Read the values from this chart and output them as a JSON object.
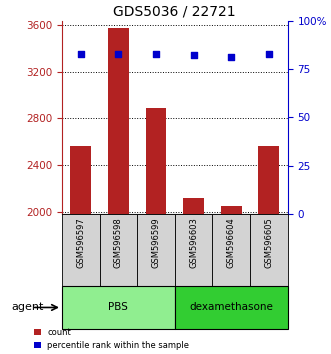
{
  "title": "GDS5036 / 22721",
  "samples": [
    "GSM596597",
    "GSM596598",
    "GSM596599",
    "GSM596603",
    "GSM596604",
    "GSM596605"
  ],
  "counts": [
    2560,
    3580,
    2890,
    2120,
    2050,
    2560
  ],
  "percentiles": [
    83,
    83,
    83,
    82,
    81,
    83
  ],
  "ylim_left": [
    1980,
    3640
  ],
  "ylim_right": [
    0,
    100
  ],
  "yticks_left": [
    2000,
    2400,
    2800,
    3200,
    3600
  ],
  "yticks_right": [
    0,
    25,
    50,
    75,
    100
  ],
  "ytick_labels_right": [
    "0",
    "25",
    "50",
    "75",
    "100%"
  ],
  "bar_color": "#b22222",
  "dot_color": "#0000cc",
  "bar_baseline": 1980,
  "groups": [
    {
      "label": "PBS",
      "indices": [
        0,
        1,
        2
      ],
      "color": "#90ee90"
    },
    {
      "label": "dexamethasone",
      "indices": [
        3,
        4,
        5
      ],
      "color": "#32cd32"
    }
  ],
  "group_row_label": "agent",
  "legend_items": [
    {
      "label": "count",
      "color": "#b22222"
    },
    {
      "label": "percentile rank within the sample",
      "color": "#0000cc"
    }
  ],
  "axis_left_color": "#b22222",
  "axis_right_color": "#0000cc",
  "grid_color": "#000000",
  "background_color": "#ffffff",
  "plot_bg_color": "#ffffff",
  "sample_bg_color": "#d3d3d3",
  "bar_width": 0.55
}
